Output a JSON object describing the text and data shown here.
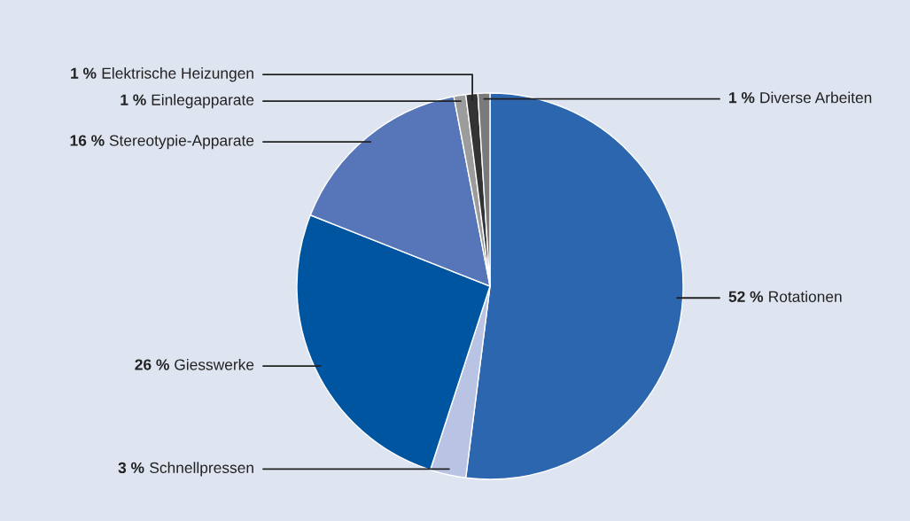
{
  "chart_data": {
    "type": "pie",
    "categories": [
      "Rotationen",
      "Schnellpressen",
      "Giesswerke",
      "Stereotypie-Apparate",
      "Einlegapparate",
      "Elektrische Heizungen",
      "Diverse Arbeiten"
    ],
    "values": [
      52,
      3,
      26,
      16,
      1,
      1,
      1
    ],
    "value_labels": [
      "52 %",
      "3 %",
      "26 %",
      "16 %",
      "1 %",
      "1 %",
      "1 %"
    ],
    "colors": [
      "#2c66ae",
      "#b9c3e3",
      "#0055a0",
      "#5676b9",
      "#9c9c9c",
      "#333333",
      "#7a7a7a"
    ]
  }
}
